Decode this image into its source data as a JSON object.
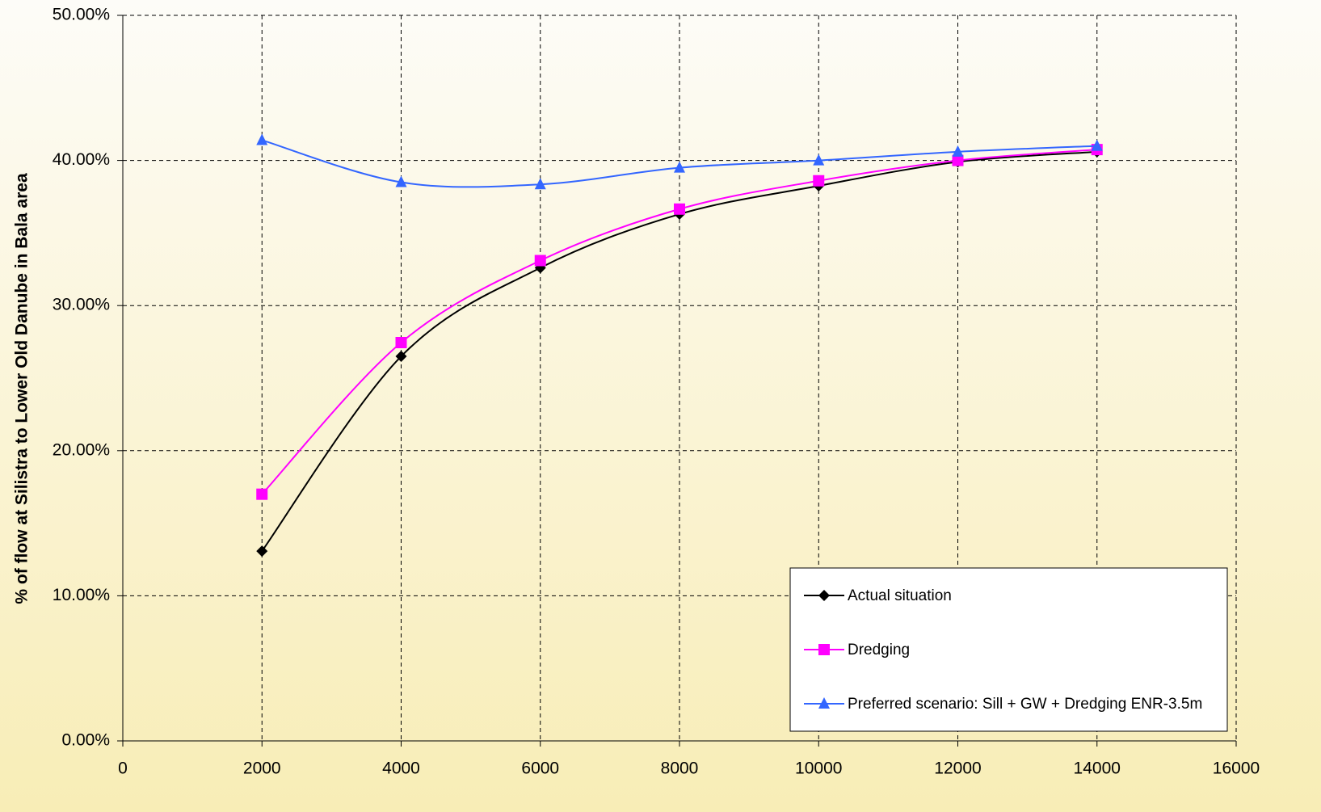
{
  "chart_data": {
    "type": "line",
    "y_label": "% of flow at Silistra to Lower Old Danube in Bala area",
    "x": [
      2000,
      4000,
      6000,
      8000,
      10000,
      12000,
      14000
    ],
    "series": [
      {
        "name": "Actual situation",
        "color": "#000000",
        "marker": "diamond",
        "values": [
          13.08,
          26.5,
          32.6,
          36.3,
          38.25,
          39.9,
          40.6
        ]
      },
      {
        "name": "Dredging",
        "color": "#ff00ff",
        "marker": "square",
        "values": [
          17.0,
          27.45,
          33.1,
          36.65,
          38.6,
          40.0,
          40.75
        ]
      },
      {
        "name": "Preferred scenario: Sill + GW + Dredging ENR-3.5m",
        "color": "#3366ff",
        "marker": "triangle",
        "values": [
          41.4,
          38.5,
          38.35,
          39.5,
          40.0,
          40.6,
          41.0
        ]
      }
    ],
    "xlim": [
      0,
      16000
    ],
    "xticks": [
      0,
      2000,
      4000,
      6000,
      8000,
      10000,
      12000,
      14000,
      16000
    ],
    "ylim": [
      0,
      50
    ],
    "yticks": [
      {
        "value": 0,
        "label": "0.00%"
      },
      {
        "value": 10,
        "label": "10.00%"
      },
      {
        "value": 20,
        "label": "20.00%"
      },
      {
        "value": 30,
        "label": "30.00%"
      },
      {
        "value": 40,
        "label": "40.00%"
      },
      {
        "value": 50,
        "label": "50.00%"
      }
    ],
    "grid": true,
    "legend": "lower right"
  }
}
